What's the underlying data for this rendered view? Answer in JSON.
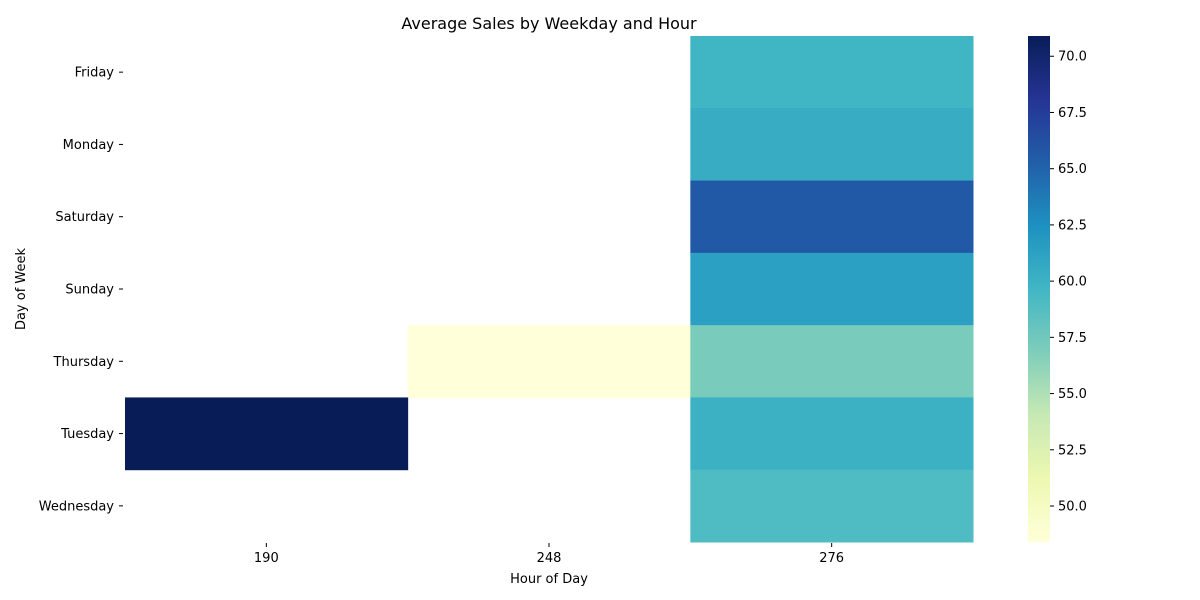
{
  "chart_data": {
    "type": "heatmap",
    "title": "Average Sales by Weekday and Hour",
    "xlabel": "Hour of Day",
    "ylabel": "Day of Week",
    "x_categories": [
      "190",
      "248",
      "276"
    ],
    "y_categories": [
      "Friday",
      "Monday",
      "Saturday",
      "Sunday",
      "Thursday",
      "Tuesday",
      "Wednesday"
    ],
    "values": [
      [
        null,
        null,
        59.7
      ],
      [
        null,
        null,
        60.4
      ],
      [
        null,
        null,
        65.6
      ],
      [
        null,
        null,
        61.3
      ],
      [
        null,
        48.4,
        57.1
      ],
      [
        70.9,
        null,
        60.0
      ],
      [
        null,
        null,
        59.0
      ]
    ],
    "colorbar": {
      "min": 48.4,
      "max": 70.9,
      "ticks": [
        "50.0",
        "52.5",
        "55.0",
        "57.5",
        "60.0",
        "62.5",
        "65.0",
        "67.5",
        "70.0"
      ],
      "colormap": "YlGnBu"
    }
  }
}
